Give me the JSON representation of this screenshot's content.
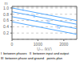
{
  "chart_data": {
    "type": "line",
    "xlabel": "U₅₀ (kV)",
    "ylabel": "m",
    "x": [
      0,
      2500
    ],
    "series": [
      {
        "values": [
          1.0,
          0.6
        ]
      },
      {
        "values": [
          0.88,
          0.48
        ]
      },
      {
        "values": [
          0.72,
          0.34
        ]
      },
      {
        "values": [
          0.56,
          0.16
        ]
      }
    ],
    "color": "#55aaff",
    "xlim": [
      0,
      2500
    ],
    "ylim": [
      0,
      1.05
    ],
    "xticks": [
      0,
      1000,
      2000
    ],
    "yticks": [
      0.2,
      0.4,
      0.6,
      0.8,
      {
        "value": 1.0,
        "label": "1.0"
      }
    ],
    "grid": true,
    "annotations": [
      {
        "text": "I",
        "x": 420,
        "y": 0.95
      },
      {
        "text": "II",
        "x": 850,
        "y": 0.73
      },
      {
        "text": "III",
        "x": 1400,
        "y": 0.55
      },
      {
        "text": "IV",
        "x": 1800,
        "y": 0.37
      }
    ],
    "captions": [
      "I  between phases   II  between input and output",
      "III  between phase and ground   points-plan"
    ]
  }
}
